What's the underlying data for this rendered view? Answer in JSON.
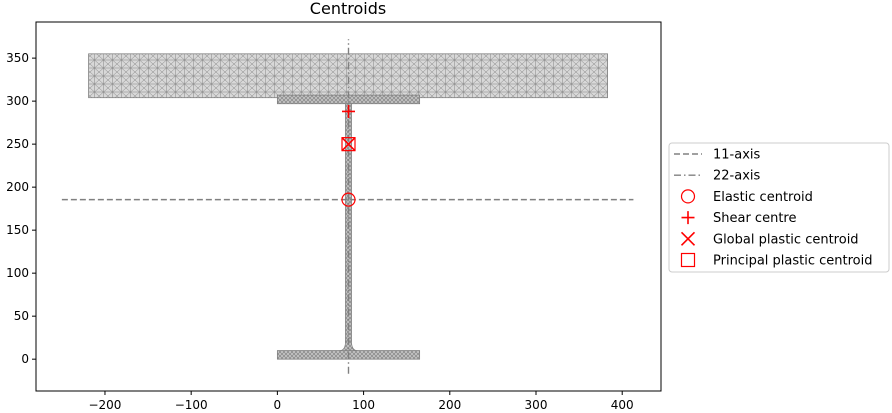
{
  "chart_data": {
    "type": "scatter",
    "title": "Centroids",
    "xlabel": "",
    "ylabel": "",
    "xlim": [
      -280,
      445
    ],
    "ylim": [
      -37,
      392
    ],
    "xticks": [
      -200,
      -100,
      0,
      100,
      200,
      300,
      400
    ],
    "yticks": [
      0,
      50,
      100,
      150,
      200,
      250,
      300,
      350
    ],
    "xtick_labels": [
      "−200",
      "−100",
      "0",
      "100",
      "200",
      "300",
      "400"
    ],
    "ytick_labels": [
      "0",
      "50",
      "100",
      "150",
      "200",
      "250",
      "300",
      "350"
    ],
    "grid": false,
    "legend_placement": "outside-right",
    "mesh_color": "#808080",
    "geometry": {
      "bottom_flange": {
        "x": [
          0,
          165
        ],
        "y": [
          0,
          10
        ]
      },
      "web": {
        "x": [
          79,
          86
        ],
        "y": [
          10,
          297
        ]
      },
      "top_plate_flange": {
        "x": [
          0,
          165
        ],
        "y": [
          297,
          307
        ]
      },
      "top_plate": {
        "x": [
          -219,
          383
        ],
        "y": [
          304,
          355
        ]
      }
    },
    "axes_lines": [
      {
        "name": "11-axis",
        "style": "dashed",
        "color": "#808080",
        "x": [
          -250,
          413
        ],
        "y": [
          185.5,
          185.5
        ]
      },
      {
        "name": "22-axis",
        "style": "dashdot",
        "color": "#808080",
        "x": [
          82.5,
          82.5
        ],
        "y": [
          -17,
          372
        ]
      }
    ],
    "series": [
      {
        "name": "Elastic centroid",
        "marker": "circle",
        "color": "#ff0000",
        "x": 82.5,
        "y": 185.5
      },
      {
        "name": "Shear centre",
        "marker": "plus",
        "color": "#ff0000",
        "x": 82.5,
        "y": 288
      },
      {
        "name": "Global plastic centroid",
        "marker": "x",
        "color": "#ff0000",
        "x": 82.5,
        "y": 250
      },
      {
        "name": "Principal plastic centroid",
        "marker": "square",
        "color": "#ff0000",
        "x": 82.5,
        "y": 250
      }
    ]
  }
}
